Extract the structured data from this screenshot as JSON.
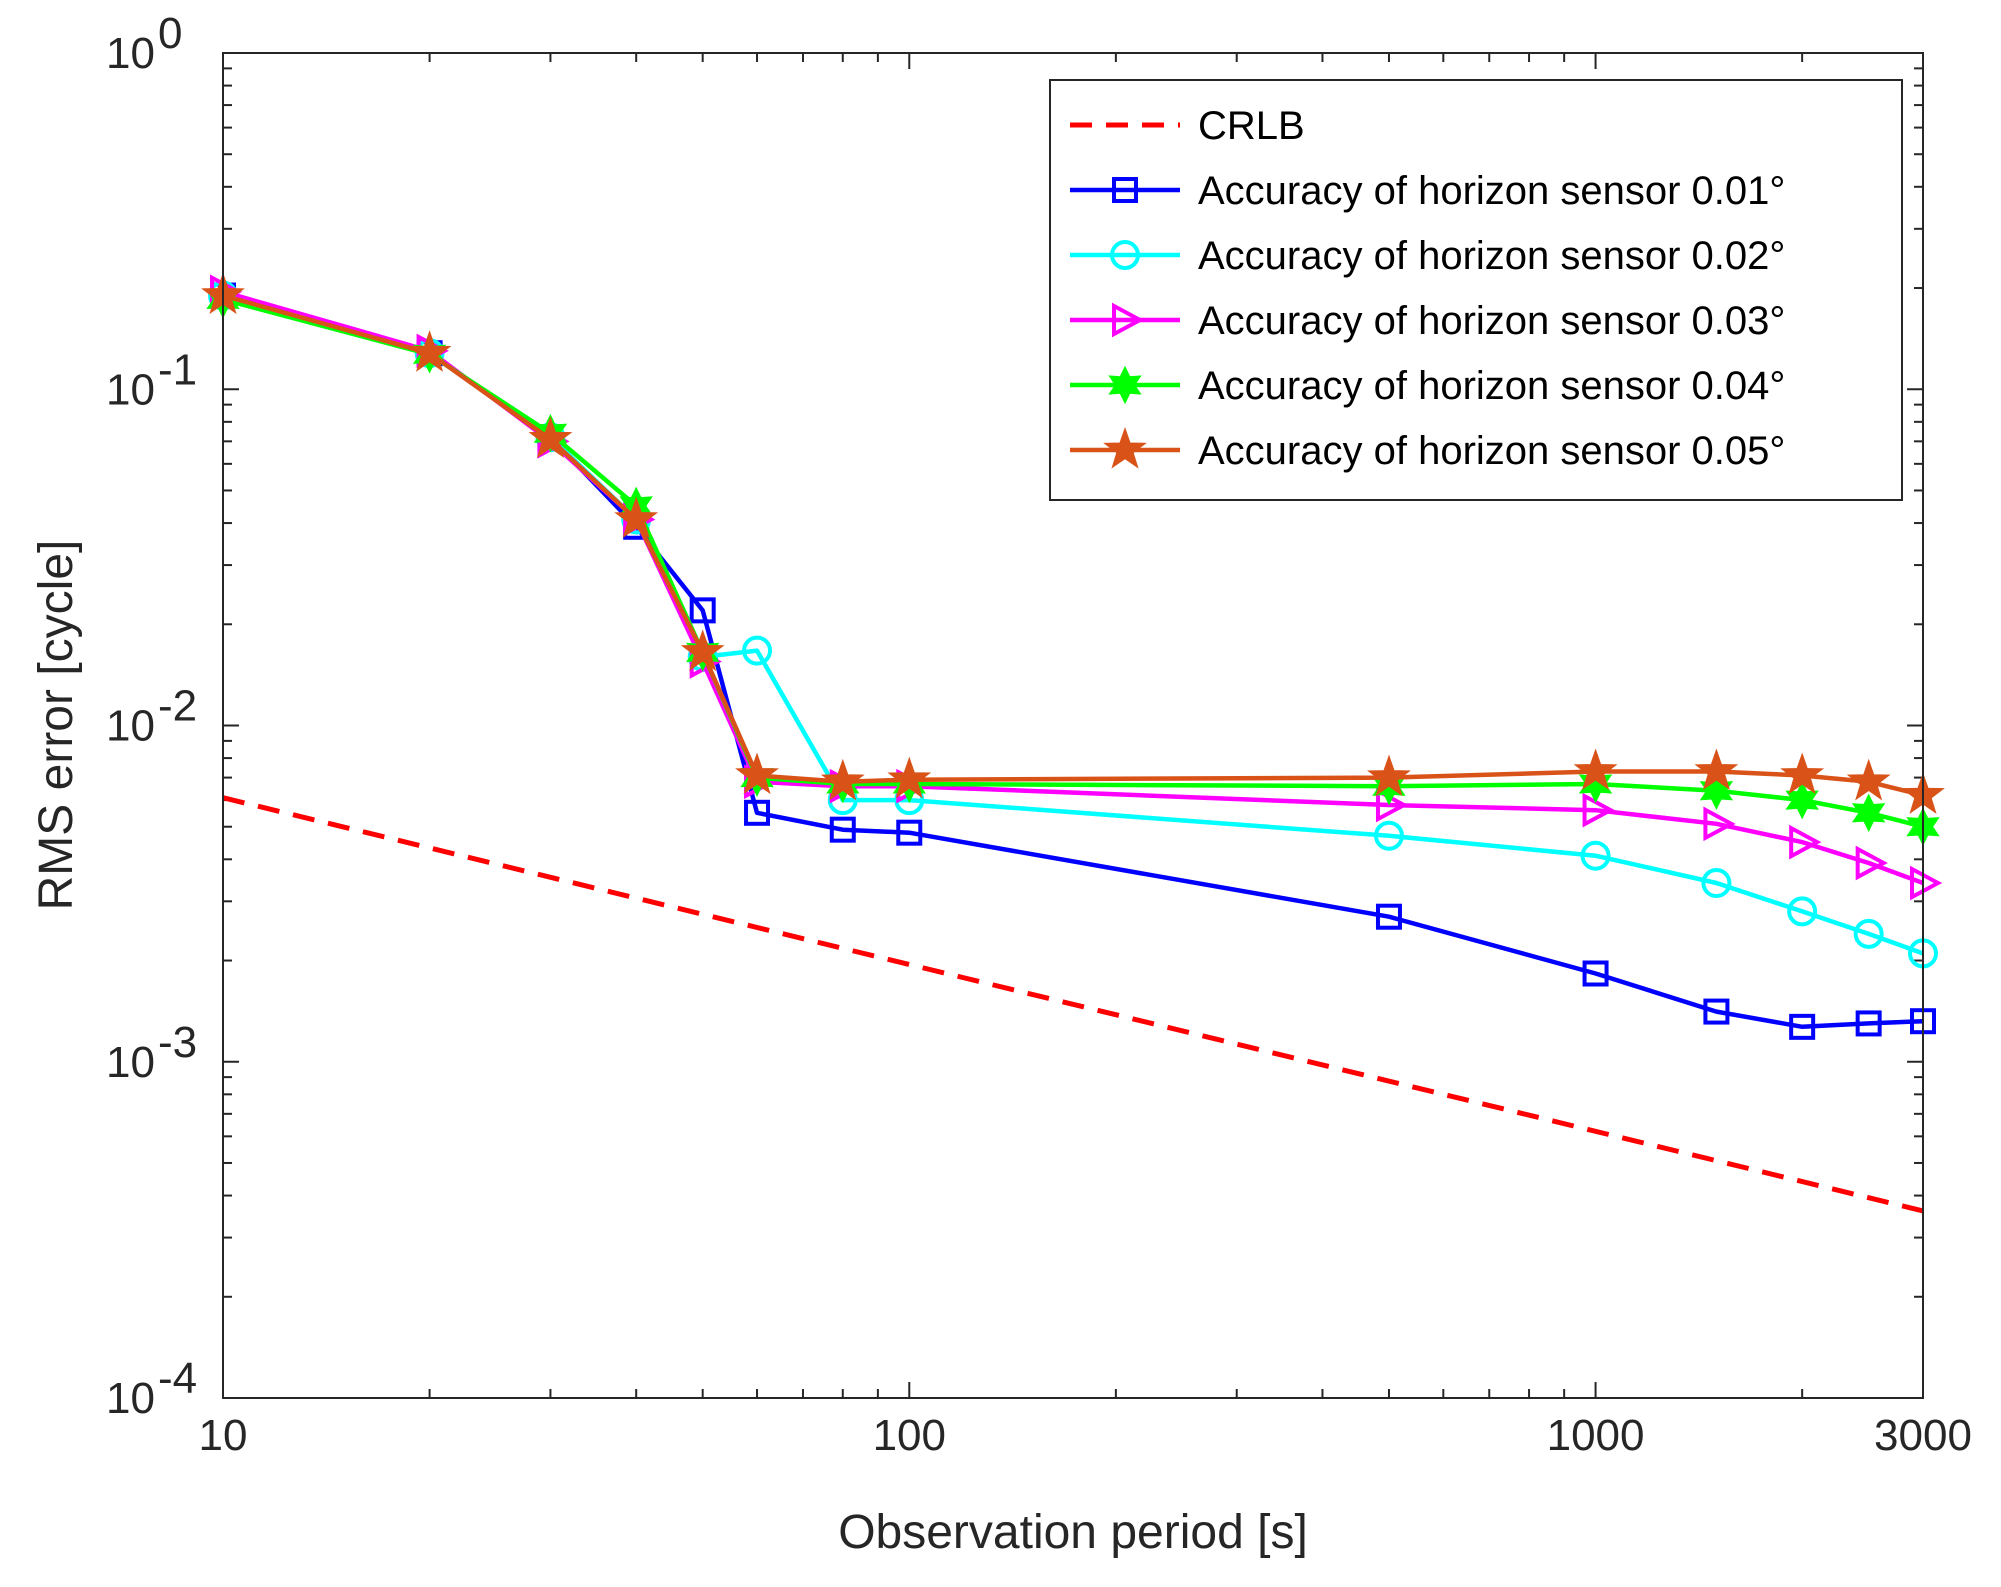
{
  "chart_data": {
    "type": "line",
    "title": "",
    "xlabel": "Observation period [s]",
    "ylabel": "RMS error [cycle]",
    "xscale": "log",
    "yscale": "log",
    "xlim": [
      10,
      3000
    ],
    "ylim": [
      0.0001,
      1
    ],
    "xticks": [
      {
        "value": 10,
        "label": "10"
      },
      {
        "value": 100,
        "label": "100"
      },
      {
        "value": 1000,
        "label": "1000"
      },
      {
        "value": 3000,
        "label": "3000"
      }
    ],
    "yticks": [
      {
        "value": 1,
        "base": "10",
        "exp": "0"
      },
      {
        "value": 0.1,
        "base": "10",
        "exp": "-1"
      },
      {
        "value": 0.01,
        "base": "10",
        "exp": "-2"
      },
      {
        "value": 0.001,
        "base": "10",
        "exp": "-3"
      },
      {
        "value": 0.0001,
        "base": "10",
        "exp": "-4"
      }
    ],
    "legend_position": "top-right",
    "series": [
      {
        "name": "CRLB",
        "color": "#ff0000",
        "style": "dashed",
        "marker": "none",
        "x": [
          10,
          3000
        ],
        "y": [
          0.0061,
          0.00036
        ]
      },
      {
        "name": "Accuracy of horizon sensor 0.01°",
        "color": "#0000ff",
        "style": "solid",
        "marker": "square",
        "x": [
          10,
          20,
          30,
          40,
          50,
          60,
          80,
          100,
          500,
          1000,
          1500,
          2000,
          2500,
          3000
        ],
        "y": [
          0.19,
          0.128,
          0.072,
          0.039,
          0.022,
          0.0055,
          0.0049,
          0.0048,
          0.0027,
          0.00183,
          0.00141,
          0.00127,
          0.0013,
          0.00132
        ]
      },
      {
        "name": "Accuracy of horizon sensor 0.02°",
        "color": "#00ffff",
        "style": "solid",
        "marker": "circle",
        "x": [
          10,
          20,
          30,
          40,
          50,
          60,
          80,
          100,
          500,
          1000,
          1500,
          2000,
          2500,
          3000
        ],
        "y": [
          0.19,
          0.128,
          0.072,
          0.041,
          0.016,
          0.0167,
          0.006,
          0.006,
          0.0047,
          0.0041,
          0.0034,
          0.0028,
          0.0024,
          0.0021
        ]
      },
      {
        "name": "Accuracy of horizon sensor 0.03°",
        "color": "#ff00ff",
        "style": "solid",
        "marker": "triangle-right",
        "x": [
          10,
          20,
          30,
          40,
          50,
          60,
          80,
          100,
          500,
          1000,
          1500,
          2000,
          2500,
          3000
        ],
        "y": [
          0.195,
          0.13,
          0.07,
          0.041,
          0.0155,
          0.0068,
          0.0066,
          0.0066,
          0.0058,
          0.0056,
          0.0051,
          0.0045,
          0.0039,
          0.0034
        ]
      },
      {
        "name": "Accuracy of horizon sensor 0.04°",
        "color": "#00ff00",
        "style": "solid",
        "marker": "hexagram",
        "x": [
          10,
          20,
          30,
          40,
          50,
          60,
          80,
          100,
          500,
          1000,
          1500,
          2000,
          2500,
          3000
        ],
        "y": [
          0.185,
          0.127,
          0.074,
          0.045,
          0.0165,
          0.007,
          0.0067,
          0.0067,
          0.0066,
          0.0067,
          0.0064,
          0.006,
          0.0055,
          0.005
        ]
      },
      {
        "name": "Accuracy of horizon sensor 0.05°",
        "color": "#d95319",
        "style": "solid",
        "marker": "pentagram",
        "x": [
          10,
          20,
          30,
          40,
          50,
          60,
          80,
          100,
          500,
          1000,
          1500,
          2000,
          2500,
          3000
        ],
        "y": [
          0.19,
          0.128,
          0.071,
          0.041,
          0.0165,
          0.0071,
          0.0068,
          0.0069,
          0.007,
          0.0073,
          0.0073,
          0.0071,
          0.0068,
          0.0062
        ]
      }
    ]
  }
}
